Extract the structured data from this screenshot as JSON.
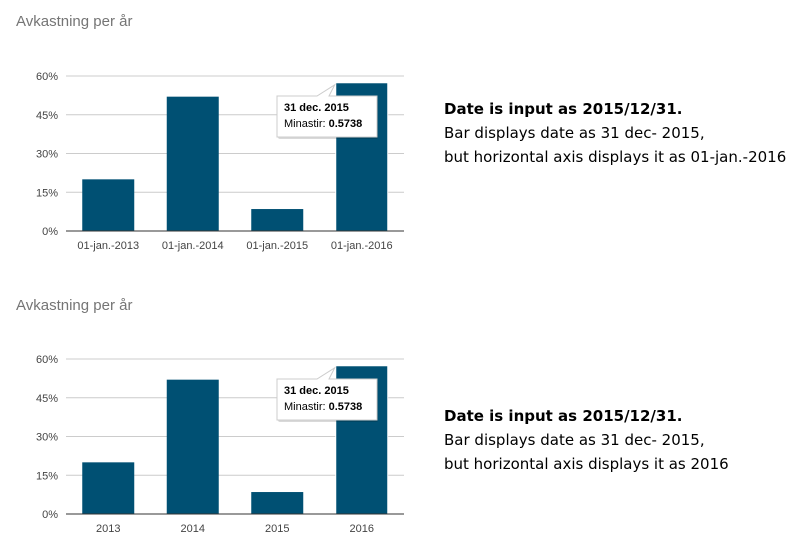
{
  "chart_data": [
    {
      "type": "bar",
      "title": "Avkastning per år",
      "categories": [
        "01-jan.-2013",
        "01-jan.-2014",
        "01-jan.-2015",
        "01-jan.-2016"
      ],
      "series": [
        {
          "name": "Minastir",
          "values": [
            0.2,
            0.52,
            0.085,
            0.5738
          ]
        }
      ],
      "yticks": [
        "0%",
        "15%",
        "30%",
        "45%",
        "60%"
      ],
      "ylim": [
        0,
        0.6
      ],
      "grid": true,
      "bar_color": "#005073",
      "tooltip": {
        "title": "31 dec. 2015",
        "label": "Minastir:",
        "value": "0.5738",
        "category_index": 3
      }
    },
    {
      "type": "bar",
      "title": "Avkastning per år",
      "categories": [
        "2013",
        "2014",
        "2015",
        "2016"
      ],
      "series": [
        {
          "name": "Minastir",
          "values": [
            0.2,
            0.52,
            0.085,
            0.5738
          ]
        }
      ],
      "yticks": [
        "0%",
        "15%",
        "30%",
        "45%",
        "60%"
      ],
      "ylim": [
        0,
        0.6
      ],
      "grid": true,
      "bar_color": "#005073",
      "tooltip": {
        "title": "31 dec. 2015",
        "label": "Minastir:",
        "value": "0.5738",
        "category_index": 3
      }
    }
  ],
  "notes": [
    {
      "line1": "Date is input as 2015/12/31.",
      "line2": "Bar displays date as 31 dec- 2015,",
      "line3": "but horizontal axis displays it as 01-jan.-2016"
    },
    {
      "line1": "Date is input as 2015/12/31.",
      "line2": "Bar displays date as 31 dec- 2015,",
      "line3": "but horizontal axis displays it as 2016"
    }
  ]
}
